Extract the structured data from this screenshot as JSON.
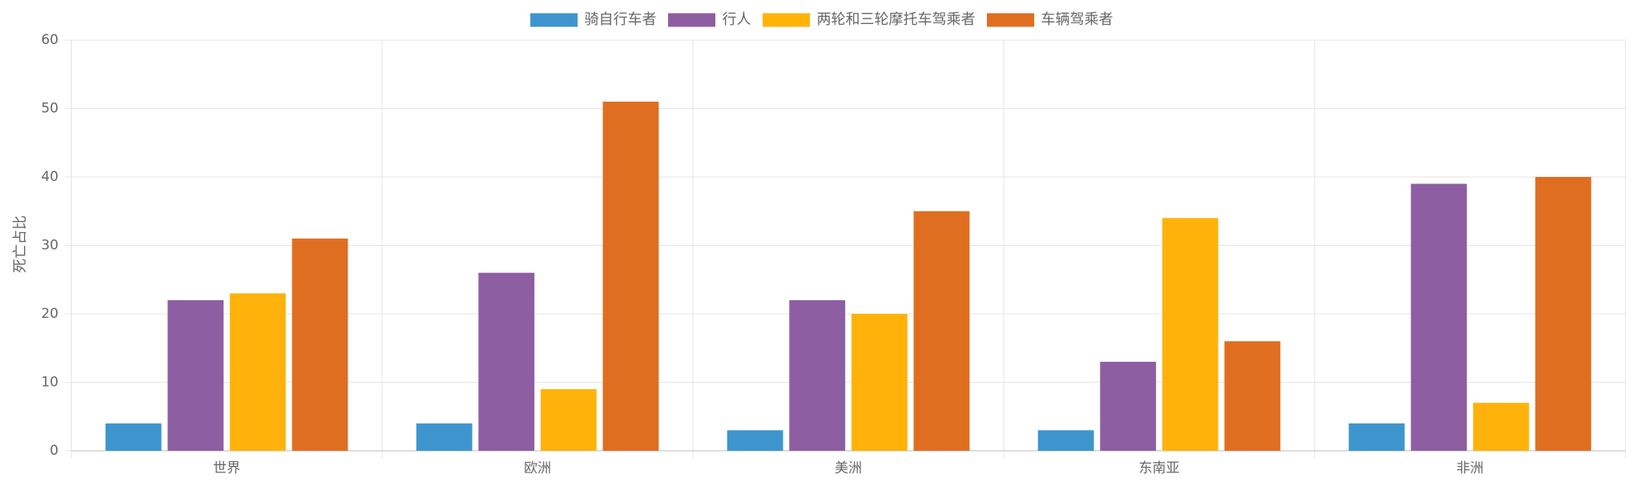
{
  "chart_data": {
    "type": "bar",
    "categories": [
      "世界",
      "欧洲",
      "美洲",
      "东南亚",
      "非洲"
    ],
    "series": [
      {
        "name": "骑自行车者",
        "color": "#3e95cd",
        "values": [
          4,
          4,
          3,
          3,
          4
        ]
      },
      {
        "name": "行人",
        "color": "#8e5ea2",
        "values": [
          22,
          26,
          22,
          13,
          39
        ]
      },
      {
        "name": "两轮和三轮摩托车驾乘者",
        "color": "#ffb30a",
        "values": [
          23,
          9,
          20,
          34,
          7
        ]
      },
      {
        "name": "车辆驾乘者",
        "color": "#e06e21",
        "values": [
          31,
          51,
          35,
          16,
          40
        ]
      }
    ],
    "y_label": "死亡占比",
    "ylim": [
      0,
      60
    ],
    "yticks": [
      0,
      10,
      20,
      30,
      40,
      50,
      60
    ],
    "grid": true,
    "legend": "top"
  }
}
